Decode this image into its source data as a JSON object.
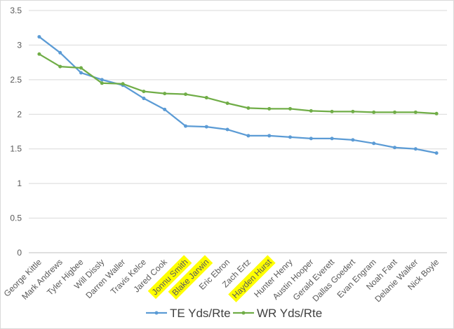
{
  "chart_data": {
    "type": "line",
    "title": "",
    "xlabel": "",
    "ylabel": "",
    "ylim": [
      0,
      3.5
    ],
    "yticks": [
      "0",
      "0.5",
      "1",
      "1.5",
      "2",
      "2.5",
      "3",
      "3.5"
    ],
    "grid": "horizontal",
    "legend_position": "bottom",
    "categories": [
      "George Kittle",
      "Mark Andrews",
      "Tyler Higbee",
      "Will Dissly",
      "Darren Waller",
      "Travis Kelce",
      "Jared Cook",
      "Jonnu Smith",
      "Blake Jarwin",
      "Eric Ebron",
      "Zach Ertz",
      "Hayden Hurst",
      "Hunter Henry",
      "Austin Hooper",
      "Gerald Everett",
      "Dallas Goedert",
      "Evan Engram",
      "Noah Fant",
      "Delanie Walker",
      "Nick Boyle"
    ],
    "highlighted_categories": [
      "Jonnu Smith",
      "Blake Jarwin",
      "Hayden Hurst"
    ],
    "highlight_color": "#ffff00",
    "series": [
      {
        "name": "TE Yds/Rte",
        "color": "#5b9bd5",
        "values": [
          3.12,
          2.89,
          2.6,
          2.5,
          2.42,
          2.23,
          2.07,
          1.83,
          1.82,
          1.78,
          1.69,
          1.69,
          1.67,
          1.65,
          1.65,
          1.63,
          1.58,
          1.52,
          1.5,
          1.44
        ]
      },
      {
        "name": "WR Yds/Rte",
        "color": "#70ad47",
        "values": [
          2.87,
          2.69,
          2.67,
          2.45,
          2.44,
          2.33,
          2.3,
          2.29,
          2.24,
          2.16,
          2.09,
          2.08,
          2.08,
          2.05,
          2.04,
          2.04,
          2.03,
          2.03,
          2.03,
          2.01
        ]
      }
    ]
  }
}
